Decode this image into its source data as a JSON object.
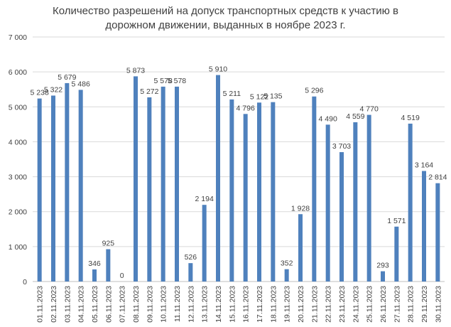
{
  "chart_data": {
    "type": "bar",
    "title_lines": [
      "Количество разрешений на допуск транспортных средств к участию в",
      "дорожном движении, выданных в ноябре 2023 г."
    ],
    "categories": [
      "01.11.2023",
      "02.11.2023",
      "03.11.2023",
      "04.11.2023",
      "05.11.2023",
      "06.11.2023",
      "07.11.2023",
      "08.11.2023",
      "09.11.2023",
      "10.11.2023",
      "11.11.2023",
      "12.11.2023",
      "13.11.2023",
      "14.11.2023",
      "15.11.2023",
      "16.11.2023",
      "17.11.2023",
      "18.11.2023",
      "19.11.2023",
      "20.11.2023",
      "21.11.2023",
      "22.11.2023",
      "23.11.2023",
      "24.11.2023",
      "25.11.2023",
      "26.11.2023",
      "27.11.2023",
      "28.11.2023",
      "29.11.2023",
      "30.11.2023"
    ],
    "values": [
      5238,
      5322,
      5679,
      5486,
      346,
      925,
      0,
      5873,
      5272,
      5578,
      5578,
      526,
      2194,
      5910,
      5211,
      4796,
      5122,
      5135,
      352,
      1928,
      5296,
      4490,
      3703,
      4559,
      4770,
      293,
      1571,
      4519,
      3164,
      2814
    ],
    "value_labels": [
      "5 238",
      "5 322",
      "5 679",
      "5 486",
      "346",
      "925",
      "0",
      "5 873",
      "5 272",
      "5 578",
      "5 578",
      "526",
      "2 194",
      "5 910",
      "5 211",
      "4 796",
      "5 122",
      "5 135",
      "352",
      "1 928",
      "5 296",
      "4 490",
      "3 703",
      "4 559",
      "4 770",
      "293",
      "1 571",
      "4 519",
      "3 164",
      "2 814"
    ],
    "ylim": [
      0,
      7000
    ],
    "yticks": [
      0,
      1000,
      2000,
      3000,
      4000,
      5000,
      6000,
      7000
    ],
    "ytick_labels": [
      "0",
      "1 000",
      "2 000",
      "3 000",
      "4 000",
      "5 000",
      "6 000",
      "7 000"
    ],
    "grid": true,
    "legend": "none",
    "bar_color": "#4f81bd",
    "grid_color": "#d9d9d9",
    "text_color": "#404040"
  }
}
